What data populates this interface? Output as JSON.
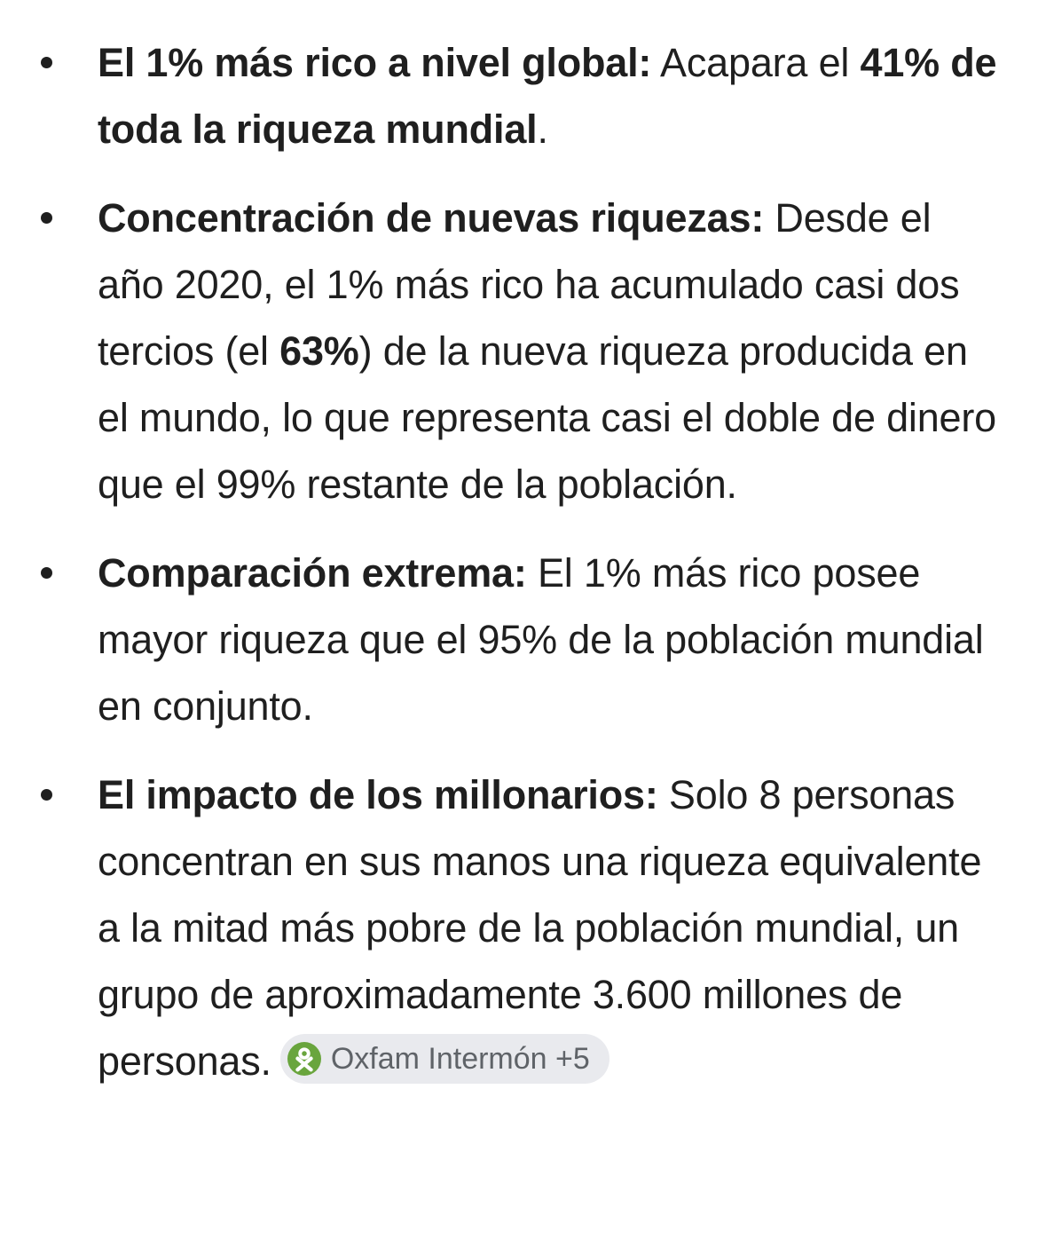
{
  "page": {
    "background": "#ffffff",
    "text_color": "#1f1f1f"
  },
  "bullets": [
    {
      "segments": [
        {
          "text": "El 1% más rico a nivel global:",
          "bold": true
        },
        {
          "text": " Acapara el ",
          "bold": false
        },
        {
          "text": "41% de toda la riqueza mundial",
          "bold": true
        },
        {
          "text": ".",
          "bold": false
        }
      ]
    },
    {
      "segments": [
        {
          "text": "Concentración de nuevas riquezas:",
          "bold": true
        },
        {
          "text": " Desde el año 2020, el 1% más rico ha acumulado casi dos tercios (el ",
          "bold": false
        },
        {
          "text": "63%",
          "bold": true
        },
        {
          "text": ") de la nueva riqueza producida en el mundo, lo que representa casi el doble de dinero que el 99% restante de la población.",
          "bold": false
        }
      ]
    },
    {
      "segments": [
        {
          "text": "Comparación extrema:",
          "bold": true
        },
        {
          "text": " El 1% más rico posee mayor riqueza que el 95% de la población mundial en conjunto.",
          "bold": false
        }
      ]
    },
    {
      "segments": [
        {
          "text": "El impacto de los millonarios:",
          "bold": true
        },
        {
          "text": " Solo 8 personas concentran en sus manos una riqueza equivalente a la mitad más pobre de la población mundial, un grupo de aproximadamente 3.600 millones de personas.",
          "bold": false
        }
      ]
    }
  ],
  "source_chip": {
    "label": "Oxfam Intermón +5",
    "icon": "oxfam-logo",
    "background": "#e9eaee",
    "text_color": "#5f6368",
    "icon_color": "#69a53d"
  }
}
